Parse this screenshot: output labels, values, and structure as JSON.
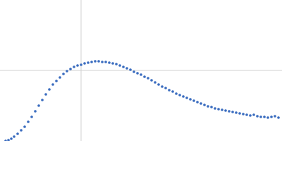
{
  "chart_data": {
    "type": "scatter",
    "x": [
      8,
      12,
      16,
      20,
      25,
      30,
      35,
      40,
      45,
      50,
      55,
      60,
      65,
      70,
      75,
      80,
      85,
      90,
      95,
      100,
      105,
      110,
      115,
      120,
      125,
      130,
      135,
      140,
      145,
      150,
      155,
      160,
      165,
      170,
      175,
      180,
      185,
      190,
      195,
      200,
      205,
      210,
      215,
      220,
      225,
      230,
      235,
      240,
      245,
      250,
      255,
      260,
      265,
      270,
      275,
      280,
      285,
      290,
      295,
      300,
      305,
      310,
      315,
      320,
      325,
      330,
      335,
      340,
      345,
      350,
      355,
      360,
      365,
      370,
      375,
      380,
      385,
      390,
      395
    ],
    "y": [
      0,
      1,
      3,
      6,
      10,
      15,
      20,
      27,
      34,
      42,
      50,
      58,
      66,
      73,
      80,
      85,
      90,
      95,
      99,
      102,
      105,
      107,
      108,
      110,
      111,
      112,
      113,
      113,
      112,
      112,
      111,
      110,
      109,
      107,
      105,
      103,
      101,
      98,
      96,
      94,
      91,
      89,
      86,
      83,
      80,
      77,
      75,
      72,
      70,
      67,
      65,
      63,
      61,
      59,
      57,
      55,
      53,
      51,
      49,
      48,
      46,
      45,
      44,
      43,
      42,
      41,
      40,
      39,
      38,
      37,
      36,
      37,
      35,
      34,
      34,
      33,
      34,
      35,
      33
    ],
    "color": "#3a6cbf",
    "xlim": [
      0,
      400
    ],
    "ylim": [
      0,
      200
    ],
    "xticks": [
      115
    ],
    "yticks": [
      100
    ],
    "grid": true
  }
}
